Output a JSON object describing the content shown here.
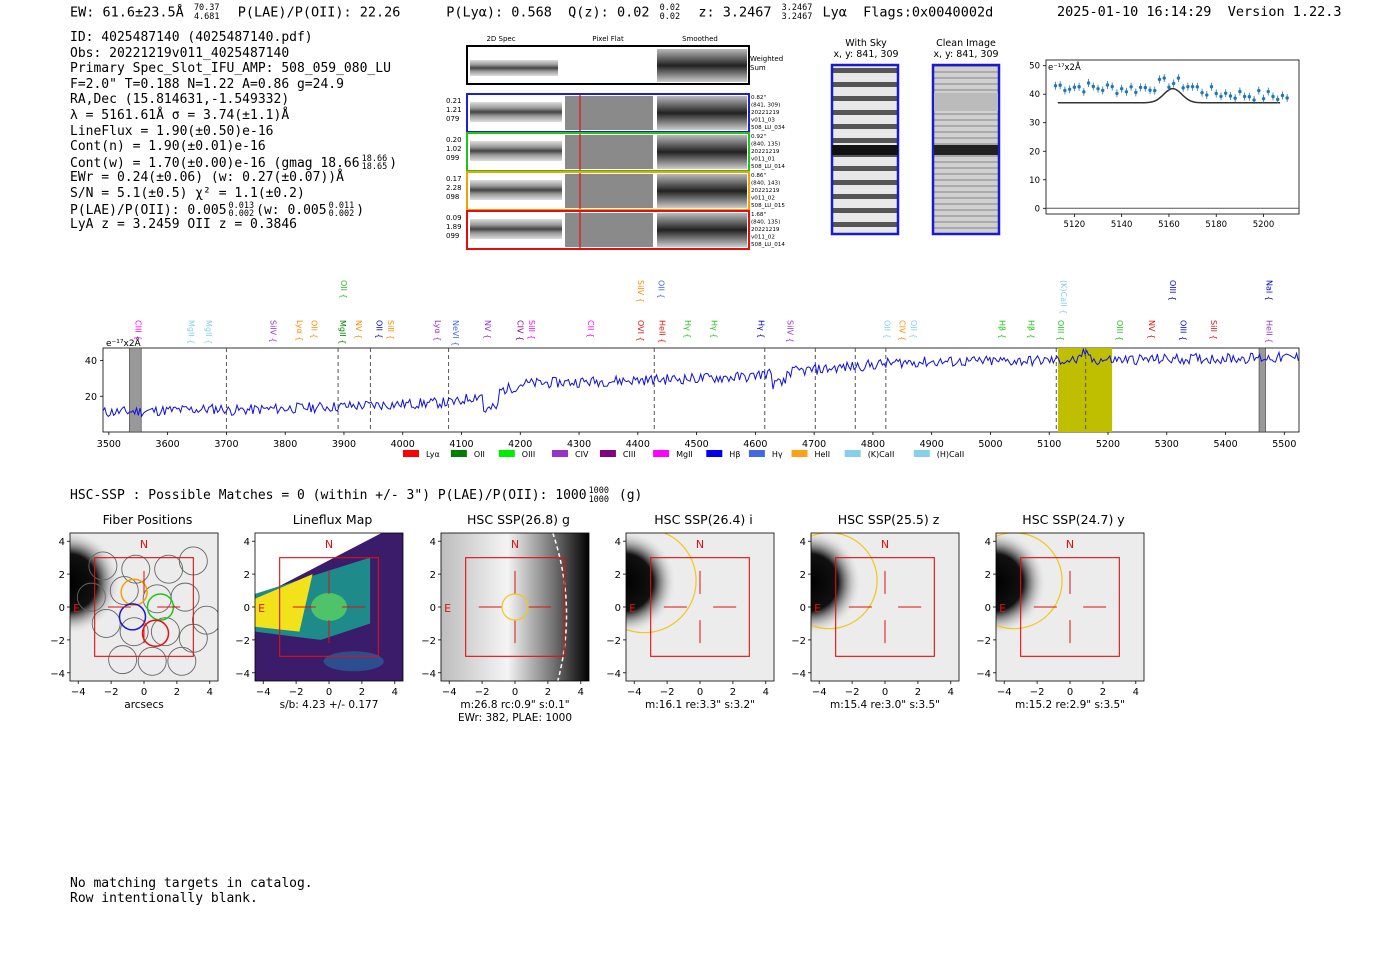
{
  "header": {
    "ew": "EW: 61.6±23.5Å",
    "ew_up": "70.37",
    "ew_lo": "4.681",
    "plae_label": "P(LAE)/P(OII): 22.26",
    "plya": "P(Lyα): 0.568",
    "qz": "Q(z): 0.02",
    "qz_up": "0.02",
    "qz_lo": "0.02",
    "z": "z: 3.2467",
    "z_up": "3.2467",
    "z_lo": "3.2467",
    "line": "Lyα",
    "flags": "Flags:0x0040002d",
    "datetime": "2025-01-10 16:14:29",
    "version": "Version 1.22.3"
  },
  "info": {
    "id": "ID: 4025487140 (4025487140.pdf)",
    "obs": "Obs: 20221219v011_4025487140",
    "primary": "Primary Spec_Slot_IFU_AMP: 508_059_080_LU",
    "params": "F=2.0\"  T=0.188  N=1.22  A=0.86  g=24.9",
    "radec": "RA,Dec (15.814631,-1.549332)",
    "lambda": "λ = 5161.61Å  σ = 3.74(±1.1)Å",
    "lineflux": "LineFlux = 1.90(±0.50)e-16",
    "contn": "Cont(n) = 1.90(±0.01)e-16",
    "contw": "Cont(w) = 1.70(±0.00)e-16 (gmag 18.66",
    "gmag_up": "18.66",
    "gmag_lo": "18.65",
    "ewr": "EWr = 0.24(±0.06) (w: 0.27(±0.07))Å",
    "sn": "S/N = 5.1(±0.5)  χ² = 1.1(±0.2)",
    "plae": "P(LAE)/P(OII): 0.005",
    "plae_up": "0.013",
    "plae_lo": "0.002",
    "plae_w": "(w: 0.005",
    "plae_w_up": "0.011",
    "plae_w_lo": "0.002",
    "lya": "LyA z = 3.2459  OII z = 0.3846"
  },
  "cutouts": {
    "col_2d": "2D Spec",
    "col_flat": "Pixel Flat",
    "col_smooth": "Smoothed",
    "weighted": "Weighted",
    "sum": "Sum",
    "rows": [
      {
        "l1": "0.21",
        "l2": "1.21",
        "l3": "079",
        "r1": "0.82\"",
        "r2": "(841, 309)",
        "r3": "20221219",
        "r4": "v011_03",
        "r5": "508_LU_034",
        "color": "#1f1fd0"
      },
      {
        "l1": "0.20",
        "l2": "1.02",
        "l3": "099",
        "r1": "0.92\"",
        "r2": "(840, 135)",
        "r3": "20221219",
        "r4": "v011_01",
        "r5": "508_LU_014",
        "color": "#22c41b"
      },
      {
        "l1": "0.17",
        "l2": "2.28",
        "l3": "098",
        "r1": "0.86\"",
        "r2": "(840, 143)",
        "r3": "20221219",
        "r4": "v011_02",
        "r5": "508_LU_015",
        "color": "#f5a000"
      },
      {
        "l1": "0.09",
        "l2": "1.89",
        "l3": "099",
        "r1": "1.68\"",
        "r2": "(840, 135)",
        "r3": "20221219",
        "r4": "v011_02",
        "r5": "508_LU_014",
        "color": "#e01010"
      }
    ]
  },
  "with_sky": {
    "title": "With Sky",
    "coords": "x, y: 841, 309"
  },
  "clean": {
    "title": "Clean Image",
    "coords": "x, y: 841, 309"
  },
  "zoom_plot": {
    "unit": "e⁻¹⁷x2Å",
    "yticks": [
      "0",
      "10",
      "20",
      "30",
      "40",
      "50"
    ],
    "xticks": [
      "5120",
      "5140",
      "5160",
      "5180",
      "5200"
    ]
  },
  "spectrum": {
    "unit": "e⁻¹⁷x2Å",
    "yticks": [
      "20",
      "40"
    ],
    "xticks": [
      "3500",
      "3600",
      "3700",
      "3800",
      "3900",
      "4000",
      "4100",
      "4200",
      "4300",
      "4400",
      "4500",
      "4600",
      "4700",
      "4800",
      "4900",
      "5000",
      "5100",
      "5200",
      "5300",
      "5400",
      "5500"
    ],
    "lines": [
      {
        "n": "CIII",
        "w": 3540,
        "c": "#ff00ff",
        "row": 2
      },
      {
        "n": "MgII",
        "w": 3630,
        "c": "#87ceeb",
        "row": 2
      },
      {
        "n": "MgII",
        "w": 3660,
        "c": "#87ceeb",
        "row": 2
      },
      {
        "n": "SiIV",
        "w": 3770,
        "c": "#9932cc",
        "row": 2
      },
      {
        "n": "Lyα",
        "w": 3815,
        "c": "#ff8c00",
        "row": 2
      },
      {
        "n": "OII",
        "w": 3840,
        "c": "#ff8c00",
        "row": 2
      },
      {
        "n": "OII",
        "w": 3890,
        "c": "#22c41b",
        "row": 1
      },
      {
        "n": "MgII",
        "w": 3888,
        "c": "#008000",
        "row": 2
      },
      {
        "n": "NV",
        "w": 3915,
        "c": "#ff8c00",
        "row": 2
      },
      {
        "n": "OII",
        "w": 3950,
        "c": "#0000cd",
        "row": 2
      },
      {
        "n": "SiII",
        "w": 3970,
        "c": "#ff8c00",
        "row": 2
      },
      {
        "n": "Lyα",
        "w": 4050,
        "c": "#9932cc",
        "row": 2
      },
      {
        "n": "NeVI",
        "w": 4080,
        "c": "#4169e1",
        "row": 2
      },
      {
        "n": "NV",
        "w": 4135,
        "c": "#9932cc",
        "row": 2
      },
      {
        "n": "CIV",
        "w": 4190,
        "c": "#800080",
        "row": 2
      },
      {
        "n": "SiII",
        "w": 4210,
        "c": "#ff00ff",
        "row": 2
      },
      {
        "n": "CII",
        "w": 4310,
        "c": "#ff00ff",
        "row": 2
      },
      {
        "n": "SiIV",
        "w": 4395,
        "c": "#ff8c00",
        "row": 1
      },
      {
        "n": "OVI",
        "w": 4395,
        "c": "#e01010",
        "row": 2
      },
      {
        "n": "OII",
        "w": 4430,
        "c": "#4169e1",
        "row": 1
      },
      {
        "n": "HeII",
        "w": 4432,
        "c": "#e01010",
        "row": 2
      },
      {
        "n": "Hγ",
        "w": 4475,
        "c": "#22c41b",
        "row": 2
      },
      {
        "n": "Hγ",
        "w": 4520,
        "c": "#22c41b",
        "row": 2
      },
      {
        "n": "Hγ",
        "w": 4600,
        "c": "#0000cd",
        "row": 2
      },
      {
        "n": "SiIV",
        "w": 4650,
        "c": "#9932cc",
        "row": 2
      },
      {
        "n": "OII",
        "w": 4815,
        "c": "#87ceeb",
        "row": 2
      },
      {
        "n": "CIV",
        "w": 4840,
        "c": "#ff8c00",
        "row": 2
      },
      {
        "n": "OII",
        "w": 4860,
        "c": "#87ceeb",
        "row": 2
      },
      {
        "n": "(K)CaII",
        "w": 5115,
        "c": "#87ceeb",
        "row": 1
      },
      {
        "n": "Hβ",
        "w": 5010,
        "c": "#22c41b",
        "row": 2
      },
      {
        "n": "Hβ",
        "w": 5060,
        "c": "#22c41b",
        "row": 2
      },
      {
        "n": "OIII",
        "w": 5110,
        "c": "#22c41b",
        "row": 2
      },
      {
        "n": "OIII",
        "w": 5210,
        "c": "#22c41b",
        "row": 2
      },
      {
        "n": "NV",
        "w": 5265,
        "c": "#e01010",
        "row": 2
      },
      {
        "n": "OIII",
        "w": 5300,
        "c": "#0000cd",
        "row": 1
      },
      {
        "n": "OIII",
        "w": 5318,
        "c": "#0000cd",
        "row": 2
      },
      {
        "n": "SiII",
        "w": 5370,
        "c": "#e01010",
        "row": 2
      },
      {
        "n": "NaI",
        "w": 5465,
        "c": "#0000cd",
        "row": 1
      },
      {
        "n": "HeII",
        "w": 5465,
        "c": "#9932cc",
        "row": 2
      }
    ],
    "legend": [
      {
        "n": "Lyα",
        "c": "#ff0000"
      },
      {
        "n": "OII",
        "c": "#008000"
      },
      {
        "n": "OIII",
        "c": "#00ee00"
      },
      {
        "n": "CIV",
        "c": "#9932cc"
      },
      {
        "n": "CIII",
        "c": "#800080"
      },
      {
        "n": "MgII",
        "c": "#ff00ff"
      },
      {
        "n": "Hβ",
        "c": "#0000ee"
      },
      {
        "n": "Hγ",
        "c": "#4169e1"
      },
      {
        "n": "HeII",
        "c": "#ff9f1a"
      },
      {
        "n": "(K)CaII",
        "c": "#87ceeb"
      },
      {
        "n": "(H)CaII",
        "c": "#87ceeb"
      }
    ]
  },
  "hsc": {
    "header": "HSC-SSP : Possible Matches = 0 (within +/- 3\")  P(LAE)/P(OII): 1000",
    "up": "1000",
    "lo": "1000",
    "band": "(g)",
    "ticks": [
      "−4",
      "−2",
      "0",
      "2",
      "4"
    ],
    "north": "N",
    "east": "E",
    "panels": [
      {
        "title": "Fiber Positions",
        "cap1": "arcsecs",
        "cap2": ""
      },
      {
        "title": "Lineflux Map",
        "cap1": "s/b: 4.23 +/- 0.177",
        "cap2": ""
      },
      {
        "title": "HSC SSP(26.8) g",
        "cap1": "m:26.8 rc:0.9\"  s:0.1\"",
        "cap2": "EWr: 382, PLAE: 1000"
      },
      {
        "title": "HSC SSP(26.4) i",
        "cap1": "m:16.1  re:3.3\"  s:3.2\"",
        "cap2": ""
      },
      {
        "title": "HSC SSP(25.5) z",
        "cap1": "m:15.4  re:3.0\"  s:3.5\"",
        "cap2": ""
      },
      {
        "title": "HSC SSP(24.7) y",
        "cap1": "m:15.2  re:2.9\"  s:3.5\"",
        "cap2": ""
      }
    ]
  },
  "footer": {
    "l1": "No matching targets in catalog.",
    "l2": "Row intentionally blank."
  }
}
